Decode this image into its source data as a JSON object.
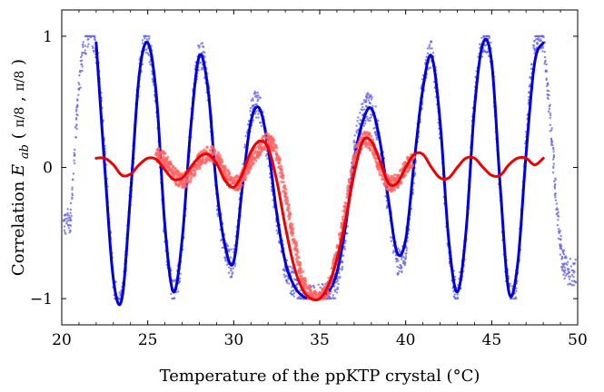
{
  "chart_data": {
    "type": "scatter",
    "title": "",
    "xlabel": "Temperature of the ppKTP crystal (°C)",
    "ylabel": "Correlation E_ab(π/8, π/8)",
    "xlim": [
      20,
      50
    ],
    "ylim": [
      -1.2,
      1.2
    ],
    "x_ticks": [
      20,
      25,
      30,
      35,
      40,
      45,
      50
    ],
    "x_tick_labels": [
      "20",
      "25",
      "30",
      "35",
      "40",
      "45",
      "50"
    ],
    "y_ticks": [
      -1,
      0,
      1
    ],
    "y_tick_labels": [
      "−1",
      "0",
      "1"
    ],
    "grid": false,
    "legend": "none",
    "series": [
      {
        "kind": "scatter",
        "color": "#6666ee",
        "x_range": [
          20.1,
          49.9
        ],
        "description_points": "dense measured points, clipped to ±1 plateaus at edges",
        "x": [
          20.5,
          21.0,
          21.5,
          22.0,
          22.5,
          23.0,
          23.5,
          24.0,
          24.5,
          25.0,
          25.5,
          26.0,
          26.5,
          27.0,
          27.5,
          28.0,
          28.5,
          29.0,
          29.5,
          30.0,
          30.5,
          31.0,
          31.5,
          32.0,
          32.5,
          33.0,
          33.5,
          34.0,
          34.5,
          35.0,
          35.5,
          36.0,
          36.5,
          37.0,
          37.5,
          38.0,
          38.5,
          39.0,
          39.5,
          40.0,
          40.5,
          41.0,
          41.5,
          42.0,
          42.5,
          43.0,
          43.5,
          44.0,
          44.5,
          45.0,
          45.5,
          46.0,
          46.5,
          47.0,
          47.5,
          48.0,
          48.5,
          49.0,
          49.5
        ],
        "y": [
          -0.4,
          0.6,
          1.0,
          0.9,
          0.1,
          -0.85,
          -1.0,
          -0.2,
          0.7,
          0.95,
          0.5,
          -0.5,
          -0.95,
          -0.6,
          0.3,
          0.85,
          0.6,
          -0.2,
          -0.6,
          -0.7,
          -0.1,
          0.4,
          0.45,
          0.1,
          -0.4,
          -0.75,
          -0.9,
          -0.98,
          -1.0,
          -1.0,
          -0.98,
          -0.85,
          -0.5,
          0.1,
          0.4,
          0.45,
          0.2,
          -0.3,
          -0.7,
          -0.6,
          0.0,
          0.6,
          0.85,
          0.3,
          -0.6,
          -0.95,
          -0.5,
          0.5,
          0.95,
          0.8,
          -0.2,
          -0.95,
          -0.8,
          0.2,
          0.9,
          0.95,
          0.2,
          -0.6,
          -0.8
        ]
      },
      {
        "kind": "line",
        "color": "#0000dd",
        "x": [
          22.0,
          22.5,
          23.0,
          23.5,
          24.0,
          24.5,
          25.0,
          25.5,
          26.0,
          26.5,
          27.0,
          27.5,
          28.0,
          28.5,
          29.0,
          29.5,
          30.0,
          30.5,
          31.0,
          31.5,
          32.0,
          32.5,
          33.0,
          33.5,
          34.0,
          34.5,
          35.0,
          35.5,
          36.0,
          36.5,
          37.0,
          37.5,
          38.0,
          38.5,
          39.0,
          39.5,
          40.0,
          40.5,
          41.0,
          41.5,
          42.0,
          42.5,
          43.0,
          43.5,
          44.0,
          44.5,
          45.0,
          45.5,
          46.0,
          46.5,
          47.0,
          47.5,
          48.0
        ],
        "y": [
          0.95,
          0.0,
          -0.85,
          -1.0,
          -0.2,
          0.7,
          0.95,
          0.55,
          -0.45,
          -0.95,
          -0.55,
          0.3,
          0.85,
          0.6,
          -0.15,
          -0.6,
          -0.72,
          -0.15,
          0.35,
          0.45,
          0.15,
          -0.35,
          -0.72,
          -0.9,
          -0.98,
          -1.0,
          -1.0,
          -0.95,
          -0.8,
          -0.45,
          0.05,
          0.35,
          0.45,
          0.2,
          -0.25,
          -0.65,
          -0.55,
          0.05,
          0.6,
          0.85,
          0.35,
          -0.55,
          -0.95,
          -0.5,
          0.45,
          0.95,
          0.8,
          -0.15,
          -0.95,
          -0.75,
          0.1,
          0.8,
          0.95
        ]
      },
      {
        "kind": "scatter",
        "color": "#ff6666",
        "x_range": [
          25.5,
          40.5
        ],
        "x": [
          25.5,
          26.0,
          26.5,
          27.0,
          27.5,
          28.0,
          28.5,
          29.0,
          29.5,
          30.0,
          30.5,
          31.0,
          31.5,
          32.0,
          32.5,
          33.0,
          33.5,
          34.0,
          34.5,
          35.0,
          35.5,
          36.0,
          36.5,
          37.0,
          37.5,
          38.0,
          38.5,
          39.0,
          39.5,
          40.0,
          40.5
        ],
        "y": [
          0.1,
          0.05,
          -0.05,
          -0.1,
          -0.05,
          0.05,
          0.1,
          0.08,
          -0.05,
          -0.12,
          -0.08,
          0.05,
          0.15,
          0.2,
          0.1,
          -0.2,
          -0.55,
          -0.85,
          -0.98,
          -1.0,
          -0.9,
          -0.65,
          -0.3,
          0.05,
          0.2,
          0.18,
          0.0,
          -0.12,
          -0.1,
          0.0,
          0.08
        ]
      },
      {
        "kind": "line",
        "color": "#ee0000",
        "x": [
          22.0,
          22.5,
          23.0,
          23.5,
          24.0,
          24.5,
          25.0,
          25.5,
          26.0,
          26.5,
          27.0,
          27.5,
          28.0,
          28.5,
          29.0,
          29.5,
          30.0,
          30.5,
          31.0,
          31.5,
          32.0,
          32.5,
          33.0,
          33.5,
          34.0,
          34.5,
          35.0,
          35.5,
          36.0,
          36.5,
          37.0,
          37.5,
          38.0,
          38.5,
          39.0,
          39.5,
          40.0,
          40.5,
          41.0,
          41.5,
          42.0,
          42.5,
          43.0,
          43.5,
          44.0,
          44.5,
          45.0,
          45.5,
          46.0,
          46.5,
          47.0,
          47.5,
          48.0
        ],
        "y": [
          0.07,
          0.07,
          0.02,
          -0.06,
          -0.05,
          0.02,
          0.07,
          0.06,
          -0.02,
          -0.09,
          -0.08,
          0.0,
          0.08,
          0.1,
          0.03,
          -0.1,
          -0.15,
          -0.05,
          0.12,
          0.2,
          0.15,
          -0.1,
          -0.45,
          -0.75,
          -0.93,
          -1.0,
          -1.0,
          -0.9,
          -0.7,
          -0.4,
          -0.05,
          0.2,
          0.2,
          0.05,
          -0.12,
          -0.12,
          0.0,
          0.1,
          0.1,
          0.0,
          -0.08,
          -0.08,
          0.0,
          0.07,
          0.07,
          0.0,
          -0.06,
          -0.06,
          0.02,
          0.07,
          0.07,
          0.02,
          0.07
        ]
      }
    ]
  }
}
